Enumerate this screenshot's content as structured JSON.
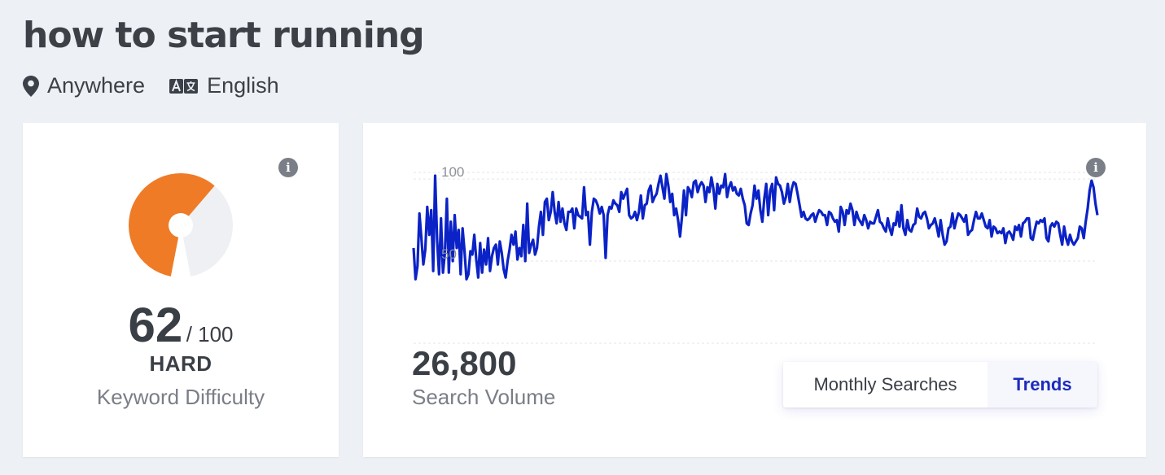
{
  "header": {
    "title": "how to start running",
    "location": "Anywhere",
    "language": "English"
  },
  "keyword_difficulty": {
    "value": "62",
    "max": "/ 100",
    "fraction": 0.62,
    "level": "HARD",
    "label": "Keyword Difficulty",
    "color": "#ef7b26",
    "track_color": "#eef0f3"
  },
  "search_volume": {
    "value": "26,800",
    "label": "Search Volume",
    "tabs": [
      "Monthly Searches",
      "Trends"
    ],
    "active_tab": "Trends"
  },
  "icons": {
    "location": "map-pin-icon",
    "language": "translate-icon",
    "info": "info-icon"
  },
  "chart_data": {
    "type": "line",
    "ylim": [
      0,
      104
    ],
    "yticks": [
      50,
      100
    ],
    "grid": true,
    "color": "#0b22c6",
    "series": [
      {
        "values": [
          58,
          39,
          47,
          79,
          64,
          48,
          57,
          83,
          66,
          81,
          44,
          102,
          63,
          42,
          76,
          43,
          55,
          88,
          43,
          74,
          50,
          78,
          58,
          69,
          42,
          70,
          56,
          39,
          42,
          56,
          54,
          66,
          51,
          40,
          61,
          43,
          57,
          48,
          64,
          44,
          53,
          58,
          60,
          48,
          62,
          55,
          45,
          40,
          50,
          57,
          66,
          60,
          68,
          51,
          58,
          53,
          72,
          50,
          85,
          55,
          60,
          63,
          54,
          58,
          71,
          80,
          66,
          86,
          88,
          75,
          80,
          92,
          80,
          73,
          86,
          74,
          82,
          73,
          69,
          80,
          80,
          82,
          70,
          82,
          78,
          77,
          76,
          95,
          78,
          80,
          60,
          80,
          88,
          87,
          84,
          79,
          83,
          78,
          52,
          78,
          83,
          82,
          87,
          85,
          84,
          80,
          92,
          88,
          91,
          94,
          78,
          76,
          77,
          80,
          75,
          80,
          90,
          76,
          84,
          85,
          93,
          96,
          86,
          89,
          91,
          97,
          102,
          95,
          88,
          103,
          96,
          86,
          91,
          78,
          82,
          75,
          65,
          77,
          93,
          78,
          95,
          93,
          89,
          98,
          99,
          92,
          96,
          98,
          96,
          86,
          95,
          92,
          101,
          94,
          82,
          97,
          91,
          96,
          95,
          103,
          89,
          95,
          98,
          93,
          95,
          91,
          90,
          94,
          88,
          84,
          73,
          72,
          79,
          84,
          96,
          88,
          93,
          81,
          74,
          88,
          97,
          78,
          93,
          97,
          81,
          101,
          97,
          96,
          92,
          85,
          89,
          97,
          86,
          94,
          98,
          97,
          91,
          84,
          77,
          80,
          76,
          75,
          76,
          78,
          79,
          74,
          78,
          81,
          80,
          78,
          78,
          72,
          80,
          79,
          76,
          74,
          75,
          68,
          83,
          80,
          72,
          81,
          79,
          85,
          81,
          72,
          80,
          76,
          74,
          72,
          78,
          75,
          70,
          74,
          73,
          73,
          77,
          81,
          74,
          73,
          70,
          68,
          76,
          70,
          66,
          73,
          72,
          80,
          71,
          84,
          70,
          66,
          75,
          69,
          68,
          72,
          73,
          82,
          77,
          76,
          79,
          80,
          76,
          70,
          72,
          73,
          76,
          71,
          65,
          75,
          66,
          60,
          62,
          70,
          71,
          79,
          70,
          75,
          79,
          78,
          76,
          74,
          78,
          66,
          68,
          69,
          75,
          80,
          76,
          76,
          79,
          75,
          71,
          70,
          75,
          65,
          71,
          70,
          67,
          68,
          67,
          70,
          61,
          67,
          68,
          66,
          63,
          71,
          69,
          72,
          65,
          73,
          74,
          76,
          76,
          64,
          63,
          69,
          74,
          73,
          75,
          74,
          76,
          64,
          62,
          71,
          73,
          71,
          74,
          73,
          66,
          60,
          71,
          64,
          60,
          66,
          62,
          60,
          62,
          64,
          71,
          70,
          64,
          74,
          82,
          93,
          99,
          95,
          85,
          78
        ]
      }
    ]
  }
}
